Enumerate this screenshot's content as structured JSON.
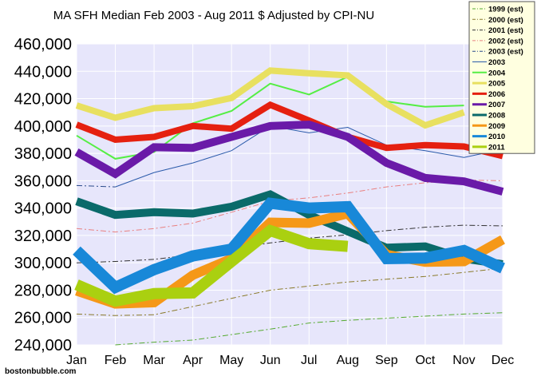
{
  "footer": "bostonbubble.com",
  "chart_data": {
    "type": "line",
    "title": "MA SFH Median Feb 2003 - Aug 2011 $ Adjusted by CPI-NU",
    "xlabel": "",
    "ylabel": "",
    "categories": [
      "Jan",
      "Feb",
      "Mar",
      "Apr",
      "May",
      "Jun",
      "Jul",
      "Aug",
      "Sep",
      "Oct",
      "Nov",
      "Dec"
    ],
    "ylim": [
      240000,
      460000
    ],
    "yticks": [
      240000,
      260000,
      280000,
      300000,
      320000,
      340000,
      360000,
      380000,
      400000,
      420000,
      440000,
      460000
    ],
    "ytick_labels": [
      "240,000",
      "260,000",
      "280,000",
      "300,000",
      "320,000",
      "340,000",
      "360,000",
      "380,000",
      "400,000",
      "420,000",
      "440,000",
      "460,000"
    ],
    "grid": true,
    "background": "#e7e6fb",
    "legend_position": "top-right",
    "series": [
      {
        "name": "1999 (est)",
        "color": "#55aa30",
        "style": "dashdot",
        "width": 1,
        "values": [
          null,
          240000,
          242000,
          243500,
          247500,
          251500,
          256000,
          258000,
          259500,
          261000,
          262500,
          263500
        ]
      },
      {
        "name": "2000 (est)",
        "color": "#8a7a2a",
        "style": "dashdot",
        "width": 1,
        "values": [
          262500,
          261500,
          262000,
          268000,
          274000,
          280000,
          283000,
          286000,
          288000,
          290000,
          293000,
          296000
        ]
      },
      {
        "name": "2001 (est)",
        "color": "#333333",
        "style": "dashdot",
        "width": 1,
        "values": [
          300000,
          301000,
          302500,
          306000,
          310500,
          314500,
          318000,
          320500,
          323500,
          326000,
          327500,
          327000
        ]
      },
      {
        "name": "2002 (est)",
        "color": "#e88080",
        "style": "dashdot",
        "width": 1,
        "values": [
          325000,
          322500,
          325000,
          329000,
          337000,
          345000,
          347500,
          351000,
          355500,
          358500,
          360500,
          360000
        ]
      },
      {
        "name": "2003 (est)",
        "color": "#2a4a8a",
        "style": "dashdot",
        "width": 1,
        "values": [
          356500,
          355500,
          null,
          null,
          null,
          null,
          null,
          null,
          null,
          null,
          null,
          null
        ]
      },
      {
        "name": "2003",
        "color": "#2a5aaa",
        "style": "solid",
        "width": 1,
        "values": [
          null,
          355500,
          366000,
          373000,
          382000,
          400000,
          395000,
          399000,
          386000,
          382000,
          377000,
          383000
        ]
      },
      {
        "name": "2004",
        "color": "#55ee44",
        "style": "solid",
        "width": 2,
        "values": [
          393000,
          376000,
          381000,
          402000,
          411000,
          431000,
          423000,
          436000,
          418000,
          414000,
          415000,
          null
        ]
      },
      {
        "name": "2005",
        "color": "#e8e060",
        "style": "solid",
        "width": 8,
        "values": [
          415000,
          406000,
          413000,
          414500,
          420500,
          440500,
          438500,
          437000,
          416000,
          400500,
          410000,
          null
        ]
      },
      {
        "name": "2006",
        "color": "#e52010",
        "style": "solid",
        "width": 8,
        "values": [
          401000,
          390000,
          392000,
          400000,
          398000,
          415500,
          404000,
          392000,
          384000,
          386000,
          385000,
          378000
        ]
      },
      {
        "name": "2007",
        "color": "#6a1aa8",
        "style": "solid",
        "width": 10,
        "values": [
          381000,
          365000,
          384500,
          384000,
          392000,
          400000,
          401000,
          392000,
          373000,
          362000,
          359500,
          352000
        ]
      },
      {
        "name": "2008",
        "color": "#0a6a6a",
        "style": "solid",
        "width": 10,
        "values": [
          345000,
          335000,
          337000,
          336000,
          341000,
          350000,
          335000,
          323000,
          311000,
          312000,
          303000,
          299000
        ]
      },
      {
        "name": "2009",
        "color": "#f59818",
        "style": "solid",
        "width": 12,
        "values": [
          279500,
          270000,
          271000,
          291000,
          303000,
          329500,
          329000,
          336000,
          306000,
          300500,
          301000,
          317000
        ]
      },
      {
        "name": "2010",
        "color": "#1888d8",
        "style": "solid",
        "width": 14,
        "values": [
          309000,
          282000,
          295000,
          305000,
          310000,
          343500,
          340000,
          341000,
          303000,
          303500,
          309000,
          296000
        ]
      },
      {
        "name": "2011",
        "color": "#aad010",
        "style": "solid",
        "width": 14,
        "values": [
          284000,
          272000,
          277500,
          278000,
          301000,
          323500,
          314000,
          312000,
          null,
          null,
          null,
          null
        ]
      }
    ]
  }
}
